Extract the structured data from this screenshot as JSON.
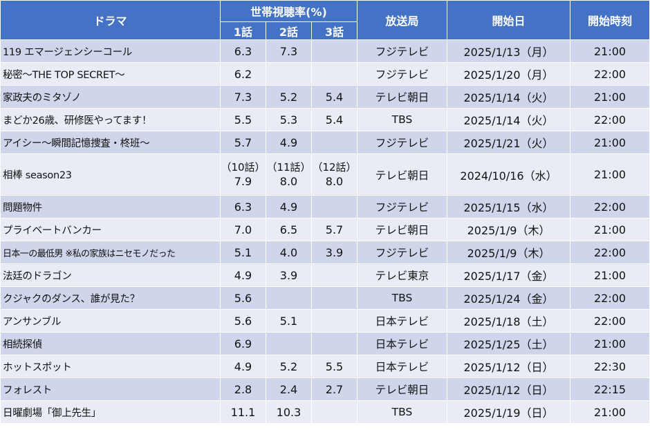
{
  "header": {
    "drama": "ドラマ",
    "rating_group": "世帯視聴率(%)",
    "ep1": "1話",
    "ep2": "2話",
    "ep3": "3話",
    "station": "放送局",
    "start_date": "開始日",
    "start_time": "開始時刻"
  },
  "rows": [
    {
      "drama": "119 エマージェンシーコール",
      "e1": "6.3",
      "e2": "7.3",
      "e3": "",
      "station": "フジテレビ",
      "date": "2025/1/13（月）",
      "time": "21:00"
    },
    {
      "drama": "秘密〜THE TOP SECRET〜",
      "e1": "6.2",
      "e2": "",
      "e3": "",
      "station": "フジテレビ",
      "date": "2025/1/20（月）",
      "time": "22:00"
    },
    {
      "drama": "家政夫のミタゾノ",
      "e1": "7.3",
      "e2": "5.2",
      "e3": "5.4",
      "station": "テレビ朝日",
      "date": "2025/1/14（火）",
      "time": "21:00"
    },
    {
      "drama": "まどか26歳、研修医やってます！",
      "e1": "5.5",
      "e2": "5.3",
      "e3": "5.4",
      "station": "TBS",
      "date": "2025/1/14（火）",
      "time": "22:00"
    },
    {
      "drama": "アイシー〜瞬間記憶捜査・柊班〜",
      "e1": "5.7",
      "e2": "4.9",
      "e3": "",
      "station": "フジテレビ",
      "date": "2025/1/21（火）",
      "time": "21:00"
    },
    {
      "drama": "相棒 season23",
      "e1_label": "（10話）",
      "e1": "7.9",
      "e2_label": "（11話）",
      "e2": "8.0",
      "e3_label": "（12話）",
      "e3": "8.0",
      "station": "テレビ朝日",
      "date": "2024/10/16（水）",
      "time": "21:00"
    },
    {
      "drama": "問題物件",
      "e1": "6.3",
      "e2": "4.9",
      "e3": "",
      "station": "フジテレビ",
      "date": "2025/1/15（水）",
      "time": "22:00"
    },
    {
      "drama": "プライベートバンカー",
      "e1": "7.0",
      "e2": "6.5",
      "e3": "5.7",
      "station": "テレビ朝日",
      "date": "2025/1/9（木）",
      "time": "21:00"
    },
    {
      "drama": "日本一の最低男 ※私の家族はニセモノだった",
      "e1": "5.1",
      "e2": "4.0",
      "e3": "3.9",
      "station": "フジテレビ",
      "date": "2025/1/9（木）",
      "time": "22:00"
    },
    {
      "drama": "法廷のドラゴン",
      "e1": "4.9",
      "e2": "3.9",
      "e3": "",
      "station": "テレビ東京",
      "date": "2025/1/17（金）",
      "time": "21:00"
    },
    {
      "drama": "クジャクのダンス、誰が見た？",
      "e1": "5.6",
      "e2": "",
      "e3": "",
      "station": "TBS",
      "date": "2025/1/24（金）",
      "time": "22:00"
    },
    {
      "drama": "アンサンブル",
      "e1": "5.6",
      "e2": "5.1",
      "e3": "",
      "station": "日本テレビ",
      "date": "2025/1/18（土）",
      "time": "22:00"
    },
    {
      "drama": "相続探偵",
      "e1": "6.9",
      "e2": "",
      "e3": "",
      "station": "日本テレビ",
      "date": "2025/1/25（土）",
      "time": "21:00"
    },
    {
      "drama": "ホットスポット",
      "e1": "4.9",
      "e2": "5.2",
      "e3": "5.5",
      "station": "日本テレビ",
      "date": "2025/1/12（日）",
      "time": "22:30"
    },
    {
      "drama": "フォレスト",
      "e1": "2.8",
      "e2": "2.4",
      "e3": "2.7",
      "station": "テレビ朝日",
      "date": "2025/1/12（日）",
      "time": "22:15"
    },
    {
      "drama": "日曜劇場「御上先生」",
      "e1": "11.1",
      "e2": "10.3",
      "e3": "",
      "station": "TBS",
      "date": "2025/1/19（日）",
      "time": "21:00"
    }
  ]
}
